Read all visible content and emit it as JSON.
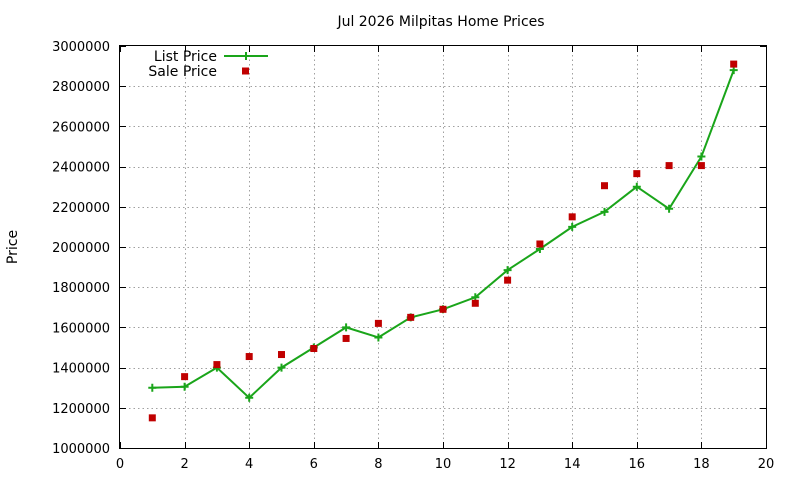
{
  "chart_data": {
    "type": "line",
    "title": "Jul 2026 Milpitas Home Prices",
    "xlabel": "",
    "ylabel": "Price",
    "xlim": [
      0,
      20
    ],
    "ylim": [
      1000000,
      3000000
    ],
    "xticks": [
      0,
      2,
      4,
      6,
      8,
      10,
      12,
      14,
      16,
      18,
      20
    ],
    "yticks": [
      1000000,
      1200000,
      1400000,
      1600000,
      1800000,
      2000000,
      2200000,
      2400000,
      2600000,
      2800000,
      3000000
    ],
    "xtick_labels": [
      "0",
      "2",
      "4",
      "6",
      "8",
      "10",
      "12",
      "14",
      "16",
      "18",
      "20"
    ],
    "ytick_labels": [
      "1000000",
      "1200000",
      "1400000",
      "1600000",
      "1800000",
      "2000000",
      "2200000",
      "2400000",
      "2600000",
      "2800000",
      "3000000"
    ],
    "grid": true,
    "legend_position": "top-left",
    "series": [
      {
        "name": "List Price",
        "style": "line-points",
        "marker": "plus",
        "color": "#1aa51a",
        "x": [
          1,
          2,
          3,
          4,
          5,
          6,
          7,
          8,
          9,
          10,
          11,
          12,
          13,
          14,
          15,
          16,
          17,
          18,
          19
        ],
        "y": [
          1300000,
          1305000,
          1400000,
          1250000,
          1400000,
          1500000,
          1600000,
          1550000,
          1650000,
          1690000,
          1750000,
          1885000,
          1990000,
          2100000,
          2175000,
          2300000,
          2190000,
          2450000,
          2880000
        ]
      },
      {
        "name": "Sale Price",
        "style": "points",
        "marker": "square",
        "color": "#c00000",
        "x": [
          1,
          2,
          3,
          4,
          5,
          6,
          7,
          8,
          9,
          10,
          11,
          12,
          13,
          14,
          15,
          16,
          17,
          18,
          19
        ],
        "y": [
          1150000,
          1355000,
          1415000,
          1455000,
          1465000,
          1495000,
          1545000,
          1620000,
          1650000,
          1690000,
          1720000,
          1835000,
          2015000,
          2150000,
          2305000,
          2365000,
          2405000,
          2405000,
          2910000
        ]
      }
    ]
  }
}
